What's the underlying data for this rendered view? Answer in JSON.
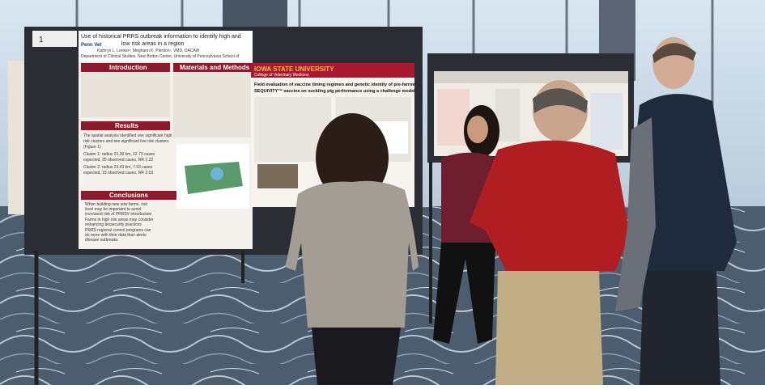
{
  "poster_left": {
    "number": "1",
    "title": [
      "Use of historical PRRS outbreak information to identify high and",
      "low risk areas in a region"
    ],
    "authors": "Kathryn L. Lenker¹; Meghann K. Pierdon¹, VMD, DACAW",
    "affiliation": "Department of Clinical Studies, New Bolton Center, University of Pennsylvania School of",
    "logo": "Penn Vet",
    "introduction": "Introduction",
    "methods": "Materials and Methods",
    "results": "Results",
    "results_lines": [
      "The spatial analysis identified one significant high",
      "risk clusters and two significant low risk clusters",
      "(Figure 1)",
      "Cluster 1: radius 31.30 km, 12.73 cases",
      "expected, 25 observed cases, RR 2.22",
      "Cluster 2: radius 23.43 km, 7.93 cases",
      "expected, 15 observed cases, RR 2.03"
    ],
    "conclusions": "Conclusions",
    "conclusion_lines": [
      "When building new sow farms, risk",
      "level may be important to avoid",
      "increased risk of PRRSV introduction",
      "Farms in high risk areas may consider",
      "enhancing biosecurity practices",
      "PRRS regional control programs can",
      "do more with their data than alerts",
      "disease outbreaks"
    ]
  },
  "poster_center": {
    "university": "IOWA STATE UNIVERSITY",
    "college": "College of Veterinary Medicine",
    "title": [
      "Field evaluation of vaccine timing regimen and genetic identity of pre-farrow",
      "SEQUIVITY™ vaccine on suckling pig performance using a challenge model"
    ]
  }
}
